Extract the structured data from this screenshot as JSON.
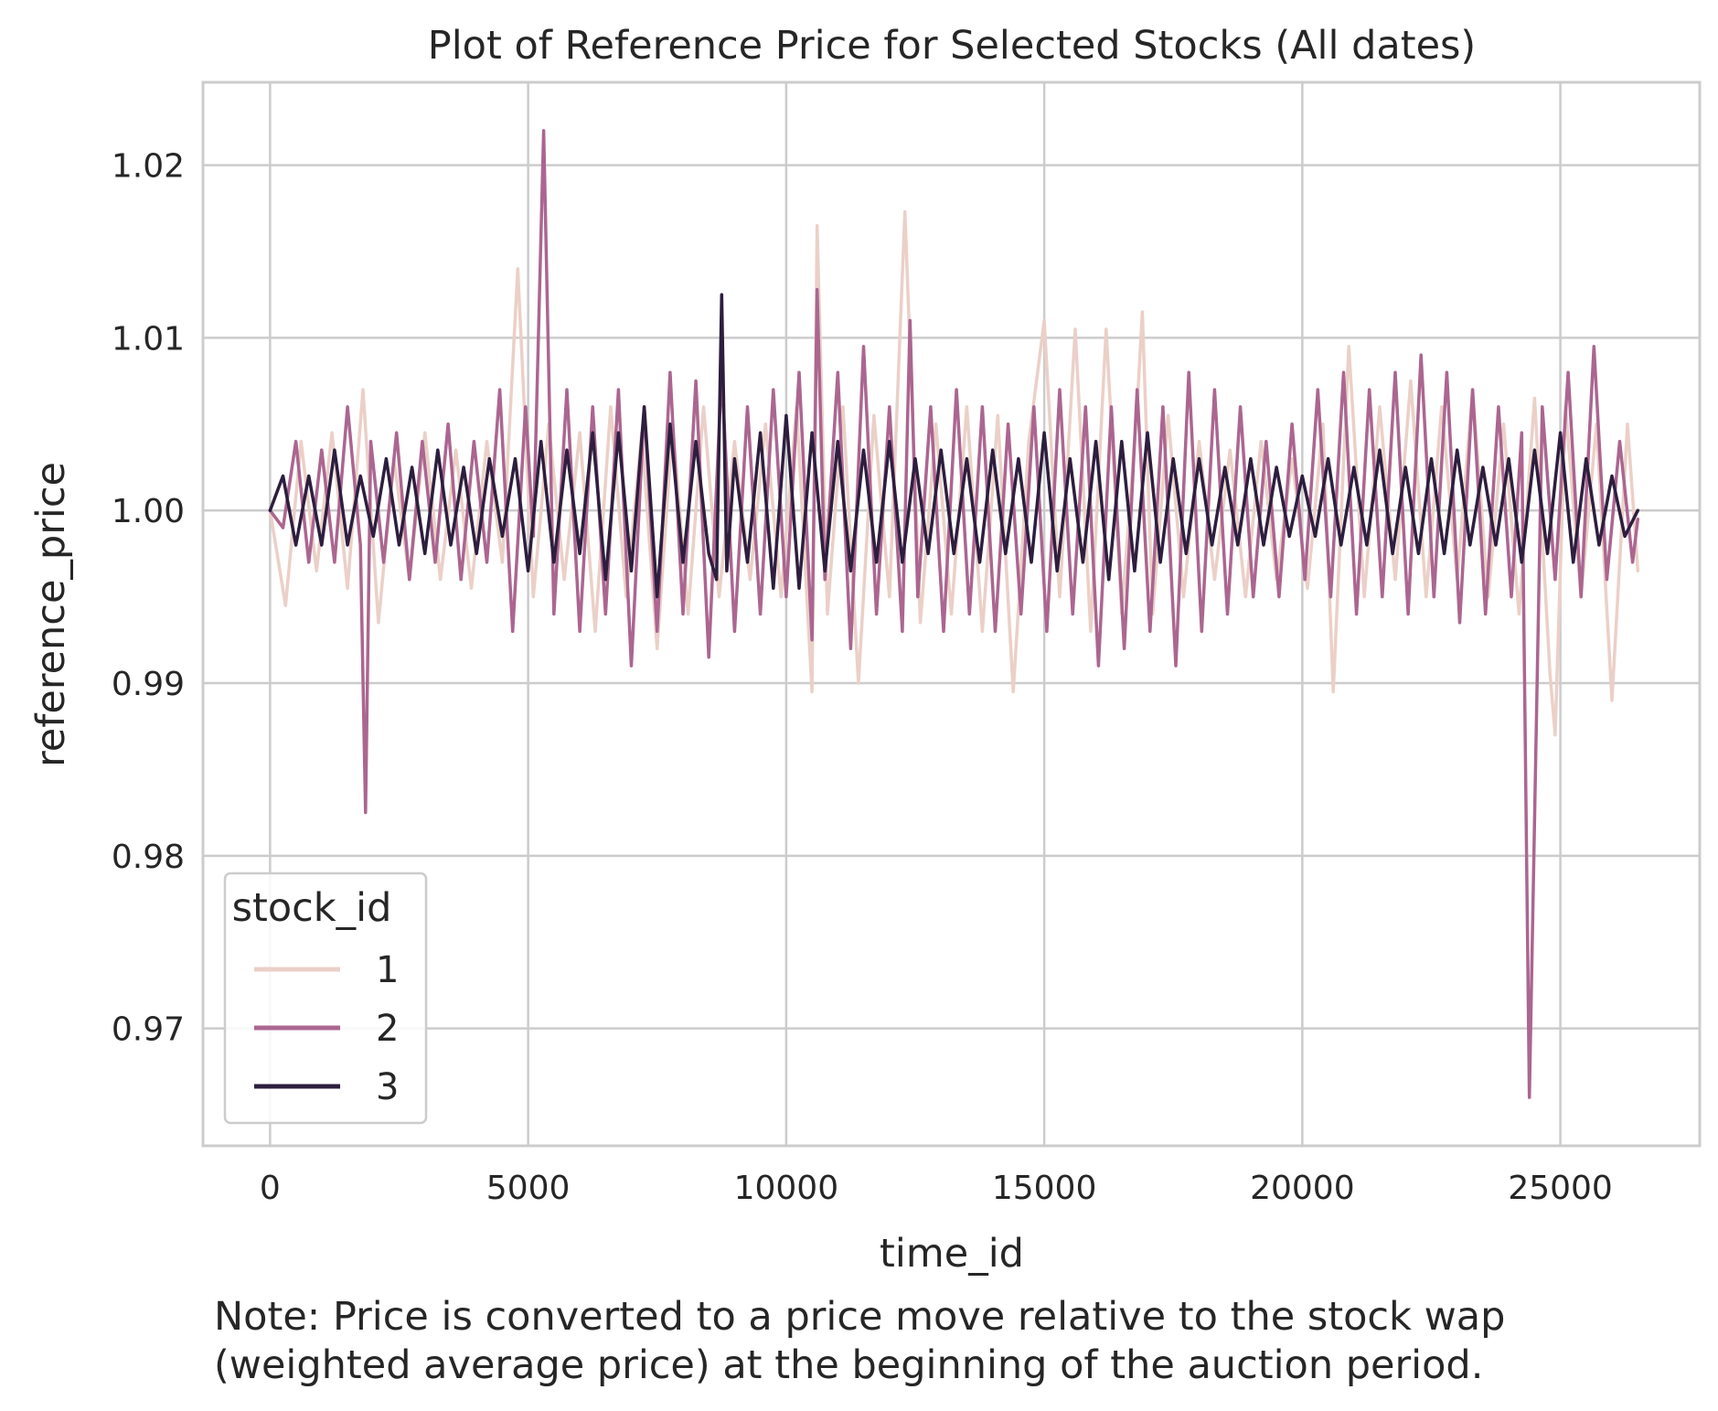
{
  "chart_data": {
    "type": "line",
    "title": "Plot of Reference Price for Selected Stocks (All dates)",
    "xlabel": "time_id",
    "ylabel": "reference_price",
    "xlim": [
      -1300,
      27700
    ],
    "ylim": [
      0.9632,
      1.0248
    ],
    "xticks": [
      0,
      5000,
      10000,
      15000,
      20000,
      25000
    ],
    "xtick_labels": [
      "0",
      "5000",
      "10000",
      "15000",
      "20000",
      "25000"
    ],
    "yticks": [
      0.97,
      0.98,
      0.99,
      1.0,
      1.01,
      1.02
    ],
    "ytick_labels": [
      "0.97",
      "0.98",
      "0.99",
      "1.00",
      "1.01",
      "1.02"
    ],
    "grid": true,
    "legend": {
      "title": "stock_id",
      "placement": "lower-left"
    },
    "series": [
      {
        "name": "1",
        "color": "#ebd0c8",
        "x": [
          0,
          300,
          600,
          900,
          1200,
          1500,
          1800,
          2100,
          2400,
          2700,
          3000,
          3300,
          3600,
          3900,
          4200,
          4500,
          4800,
          5100,
          5400,
          5700,
          6000,
          6300,
          6600,
          6900,
          7200,
          7500,
          7800,
          8100,
          8400,
          8700,
          9000,
          9300,
          9600,
          9900,
          10200,
          10500,
          10600,
          10800,
          11100,
          11400,
          11700,
          12000,
          12300,
          12600,
          12900,
          13200,
          13500,
          13800,
          14100,
          14400,
          14700,
          15000,
          15300,
          15600,
          15900,
          16200,
          16500,
          16800,
          16900,
          17100,
          17400,
          17700,
          18000,
          18300,
          18600,
          18900,
          19200,
          19500,
          19800,
          20100,
          20400,
          20600,
          20900,
          21200,
          21500,
          21800,
          22100,
          22400,
          22700,
          23000,
          23300,
          23600,
          23900,
          24200,
          24500,
          24800,
          24900,
          25100,
          25400,
          25700,
          26000,
          26300,
          26500
        ],
        "values": [
          1.0,
          0.9945,
          1.004,
          0.9965,
          1.0045,
          0.9955,
          1.007,
          0.9935,
          1.003,
          0.996,
          1.0045,
          0.996,
          1.0035,
          0.9955,
          1.004,
          0.997,
          1.014,
          0.995,
          1.005,
          0.996,
          1.0045,
          0.993,
          1.006,
          0.995,
          1.0045,
          0.992,
          1.005,
          0.994,
          1.006,
          0.995,
          1.004,
          0.996,
          1.005,
          0.995,
          1.006,
          0.9895,
          1.0165,
          0.994,
          1.006,
          0.99,
          1.0055,
          0.995,
          1.0173,
          0.9935,
          1.005,
          0.994,
          1.006,
          0.993,
          1.0055,
          0.9895,
          1.004,
          1.011,
          0.995,
          1.0105,
          0.993,
          1.0105,
          0.994,
          1.006,
          1.0115,
          0.994,
          1.0055,
          0.995,
          1.004,
          0.996,
          1.0035,
          0.995,
          1.004,
          0.996,
          1.003,
          0.9955,
          1.005,
          0.9895,
          1.0095,
          0.995,
          1.006,
          0.996,
          1.0075,
          0.995,
          1.006,
          0.996,
          1.007,
          0.995,
          1.005,
          0.994,
          1.0065,
          0.9905,
          0.987,
          1.006,
          0.995,
          1.005,
          0.989,
          1.005,
          0.9965
        ]
      },
      {
        "name": "2",
        "color": "#ab6690",
        "x": [
          0,
          250,
          500,
          750,
          1000,
          1250,
          1500,
          1750,
          1850,
          1950,
          2200,
          2450,
          2700,
          2950,
          3200,
          3450,
          3700,
          3950,
          4200,
          4450,
          4700,
          4950,
          5100,
          5300,
          5500,
          5750,
          6000,
          6250,
          6500,
          6750,
          7000,
          7250,
          7500,
          7750,
          8000,
          8250,
          8500,
          8750,
          9000,
          9250,
          9500,
          9750,
          10000,
          10250,
          10500,
          10600,
          10750,
          11000,
          11250,
          11500,
          11750,
          12000,
          12250,
          12400,
          12550,
          12800,
          13050,
          13300,
          13550,
          13800,
          14050,
          14300,
          14550,
          14800,
          15050,
          15300,
          15550,
          15800,
          16050,
          16300,
          16550,
          16800,
          17050,
          17300,
          17550,
          17800,
          18050,
          18300,
          18550,
          18800,
          19050,
          19300,
          19550,
          19800,
          20050,
          20300,
          20550,
          20800,
          21050,
          21300,
          21550,
          21800,
          22050,
          22300,
          22550,
          22800,
          23050,
          23300,
          23550,
          23800,
          24050,
          24250,
          24400,
          24650,
          24900,
          25150,
          25400,
          25650,
          25900,
          26150,
          26400,
          26500
        ],
        "values": [
          1.0,
          0.999,
          1.004,
          0.997,
          1.0035,
          0.997,
          1.006,
          0.998,
          0.9825,
          1.004,
          0.997,
          1.0045,
          0.996,
          1.004,
          0.997,
          1.005,
          0.996,
          1.004,
          0.997,
          1.007,
          0.993,
          1.006,
          0.9985,
          1.022,
          0.994,
          1.007,
          0.993,
          1.006,
          0.994,
          1.007,
          0.991,
          1.006,
          0.993,
          1.008,
          0.994,
          1.0075,
          0.9915,
          1.008,
          0.993,
          1.006,
          0.994,
          1.007,
          0.995,
          1.008,
          0.9925,
          1.0128,
          0.996,
          1.008,
          0.992,
          1.0095,
          0.994,
          1.006,
          0.993,
          1.011,
          0.995,
          1.006,
          0.993,
          1.007,
          0.994,
          1.006,
          0.993,
          1.005,
          0.994,
          1.006,
          0.993,
          1.007,
          0.994,
          1.006,
          0.991,
          1.006,
          0.992,
          1.007,
          0.993,
          1.006,
          0.991,
          1.008,
          0.993,
          1.007,
          0.994,
          1.006,
          0.995,
          1.004,
          0.995,
          1.005,
          0.996,
          1.007,
          0.995,
          1.008,
          0.994,
          1.007,
          0.995,
          1.008,
          0.994,
          1.009,
          0.995,
          1.008,
          0.9935,
          1.007,
          0.994,
          1.006,
          0.995,
          1.0045,
          0.966,
          1.006,
          0.996,
          1.008,
          0.995,
          1.0095,
          0.996,
          1.004,
          0.997,
          0.9995
        ]
      },
      {
        "name": "3",
        "color": "#2d1e3e",
        "x": [
          0,
          250,
          500,
          750,
          1000,
          1250,
          1500,
          1750,
          2000,
          2250,
          2500,
          2750,
          3000,
          3250,
          3500,
          3750,
          4000,
          4250,
          4500,
          4750,
          5000,
          5250,
          5500,
          5750,
          6000,
          6250,
          6500,
          6750,
          7000,
          7250,
          7500,
          7750,
          8000,
          8250,
          8500,
          8650,
          8750,
          8850,
          9000,
          9250,
          9500,
          9750,
          10000,
          10250,
          10500,
          10750,
          11000,
          11250,
          11500,
          11750,
          12000,
          12250,
          12500,
          12750,
          13000,
          13250,
          13500,
          13750,
          14000,
          14250,
          14500,
          14750,
          15000,
          15250,
          15500,
          15750,
          16000,
          16250,
          16500,
          16750,
          17000,
          17250,
          17500,
          17750,
          18000,
          18250,
          18500,
          18750,
          19000,
          19250,
          19500,
          19750,
          20000,
          20250,
          20500,
          20750,
          21000,
          21250,
          21500,
          21750,
          22000,
          22250,
          22500,
          22750,
          23000,
          23250,
          23500,
          23750,
          24000,
          24250,
          24500,
          24750,
          25000,
          25250,
          25500,
          25750,
          26000,
          26250,
          26500
        ],
        "values": [
          1.0,
          1.002,
          0.998,
          1.002,
          0.998,
          1.0035,
          0.998,
          1.002,
          0.9985,
          1.003,
          0.998,
          1.0025,
          0.9975,
          1.0035,
          0.998,
          1.0025,
          0.9975,
          1.003,
          0.9985,
          1.003,
          0.9965,
          1.004,
          0.997,
          1.0035,
          0.9975,
          1.0045,
          0.996,
          1.0045,
          0.9965,
          1.006,
          0.995,
          1.005,
          0.997,
          1.004,
          0.9975,
          0.996,
          1.0125,
          0.9965,
          1.003,
          0.997,
          1.0045,
          0.9955,
          1.0055,
          0.9955,
          1.0045,
          0.9965,
          1.004,
          0.9965,
          1.0035,
          0.997,
          1.004,
          0.997,
          1.003,
          0.9975,
          1.0035,
          0.9975,
          1.003,
          0.997,
          1.0035,
          0.9975,
          1.003,
          0.997,
          1.0045,
          0.9965,
          1.003,
          0.997,
          1.004,
          0.996,
          1.004,
          0.9965,
          1.0045,
          0.997,
          1.003,
          0.9975,
          1.003,
          0.998,
          1.0025,
          0.998,
          1.003,
          0.998,
          1.0025,
          0.9985,
          1.002,
          0.9985,
          1.003,
          0.998,
          1.0025,
          0.998,
          1.0035,
          0.9975,
          1.0025,
          0.9975,
          1.003,
          0.9975,
          1.0035,
          0.998,
          1.0025,
          0.998,
          1.003,
          0.997,
          1.0035,
          0.9975,
          1.0045,
          0.997,
          1.003,
          0.998,
          1.002,
          0.9985,
          1.0
        ]
      }
    ],
    "note": [
      "Note: Price is converted to a price move relative to the stock wap",
      "(weighted average price) at the beginning of the auction period."
    ]
  }
}
